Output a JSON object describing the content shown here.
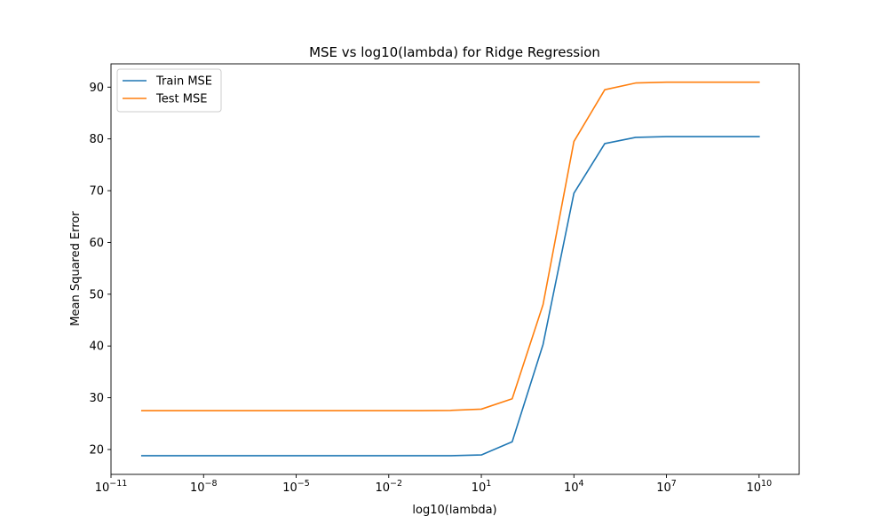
{
  "chart_data": {
    "type": "line",
    "title": "MSE vs log10(lambda) for Ridge Regression",
    "xlabel": "log10(lambda)",
    "ylabel": "Mean Squared Error",
    "x_scale": "log",
    "xlim_exponent": [
      -11,
      11.3
    ],
    "ylim": [
      15.2,
      94.5
    ],
    "x_ticks": [
      {
        "exp": -11,
        "base": "10",
        "sup": "−11"
      },
      {
        "exp": -8,
        "base": "10",
        "sup": "−8"
      },
      {
        "exp": -5,
        "base": "10",
        "sup": "−5"
      },
      {
        "exp": -2,
        "base": "10",
        "sup": "−2"
      },
      {
        "exp": 1,
        "base": "10",
        "sup": "1"
      },
      {
        "exp": 4,
        "base": "10",
        "sup": "4"
      },
      {
        "exp": 7,
        "base": "10",
        "sup": "7"
      },
      {
        "exp": 10,
        "base": "10",
        "sup": "10"
      }
    ],
    "y_ticks": [
      "20",
      "30",
      "40",
      "50",
      "60",
      "70",
      "80",
      "90"
    ],
    "grid": false,
    "legend_position": "top-left",
    "x": [
      1e-10,
      1e-09,
      1e-08,
      1e-07,
      1e-06,
      1e-05,
      0.0001,
      0.001,
      0.01,
      0.1,
      1,
      10,
      100,
      1000,
      10000,
      100000,
      1000000,
      10000000,
      100000000,
      1000000000,
      10000000000
    ],
    "series": [
      {
        "name": "Train MSE",
        "color": "#1f77b4",
        "values": [
          18.8,
          18.8,
          18.8,
          18.8,
          18.8,
          18.8,
          18.8,
          18.8,
          18.8,
          18.8,
          18.8,
          18.95,
          21.5,
          40.3,
          69.5,
          79.1,
          80.3,
          80.45,
          80.45,
          80.45,
          80.45
        ]
      },
      {
        "name": "Test MSE",
        "color": "#ff7f0e",
        "values": [
          27.5,
          27.5,
          27.5,
          27.5,
          27.5,
          27.5,
          27.5,
          27.5,
          27.5,
          27.5,
          27.55,
          27.8,
          29.8,
          48.0,
          79.5,
          89.5,
          90.8,
          90.95,
          90.95,
          90.95,
          90.95
        ]
      }
    ]
  }
}
